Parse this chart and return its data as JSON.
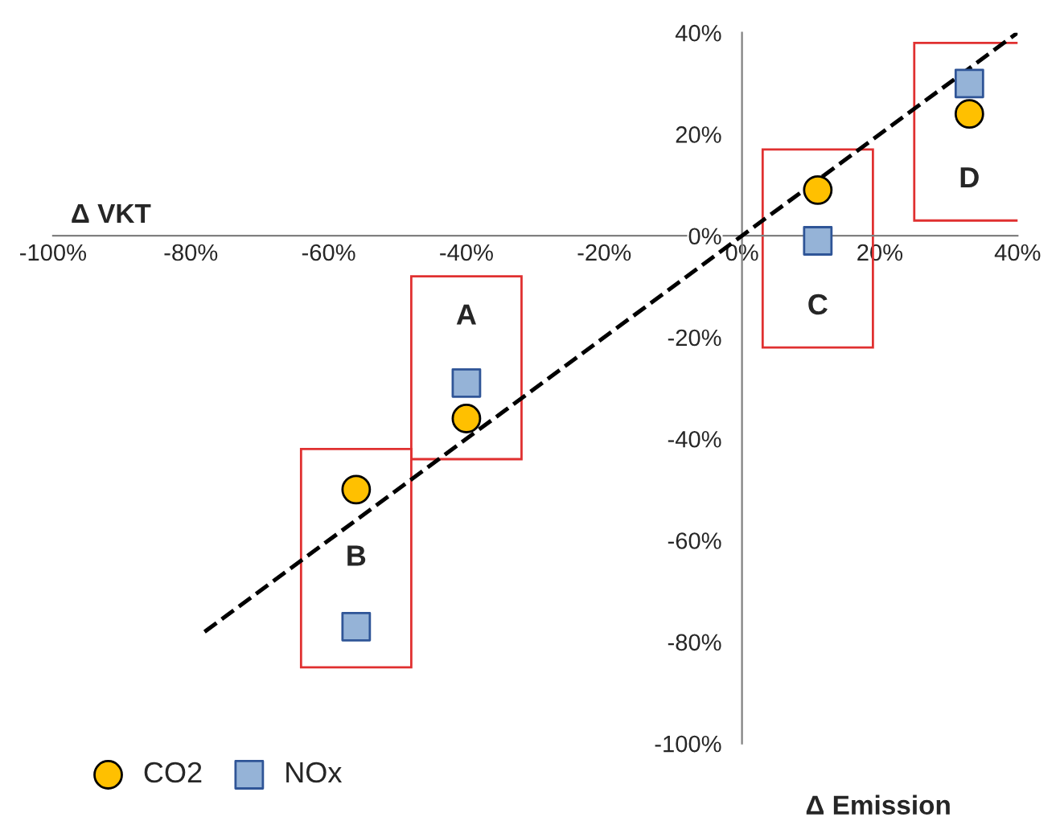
{
  "chart_data": {
    "type": "scatter",
    "xlabel": "Δ VKT",
    "xlim": [
      -100,
      40
    ],
    "ylim": [
      -100,
      40
    ],
    "xticks": [
      {
        "value": -100,
        "label": "-100%"
      },
      {
        "value": -80,
        "label": "-80%"
      },
      {
        "value": -60,
        "label": "-60%"
      },
      {
        "value": -40,
        "label": "-40%"
      },
      {
        "value": -20,
        "label": "-20%"
      },
      {
        "value": 0,
        "label": "0%"
      },
      {
        "value": 20,
        "label": "20%"
      },
      {
        "value": 40,
        "label": "40%"
      }
    ],
    "yticks": [
      {
        "value": -100,
        "label": "-100%"
      },
      {
        "value": -80,
        "label": "-80%"
      },
      {
        "value": -60,
        "label": "-60%"
      },
      {
        "value": -40,
        "label": "-40%"
      },
      {
        "value": -20,
        "label": "-20%"
      },
      {
        "value": 0,
        "label": "0%"
      },
      {
        "value": 20,
        "label": "20%"
      },
      {
        "value": 40,
        "label": "40%"
      }
    ],
    "grid": false,
    "legend": "bottom left",
    "series": [
      {
        "name": "CO2",
        "color": "#ffc000",
        "marker": "circle",
        "x": [
          -40,
          -56,
          11,
          33
        ],
        "values": [
          -36,
          -50,
          9,
          24
        ]
      },
      {
        "name": "NOx",
        "color": "#95b3d7",
        "marker": "square",
        "x": [
          -40,
          -56,
          11,
          33
        ],
        "values": [
          -29,
          -77,
          -1,
          30
        ]
      },
      {
        "type": "line",
        "color": "#000000",
        "line_style": "dashed",
        "marker": "none",
        "x": [
          -78,
          40
        ],
        "values": [
          -78,
          40
        ]
      }
    ],
    "annotations": [
      "A",
      "B",
      "C",
      "D",
      "Δ Emission"
    ]
  }
}
